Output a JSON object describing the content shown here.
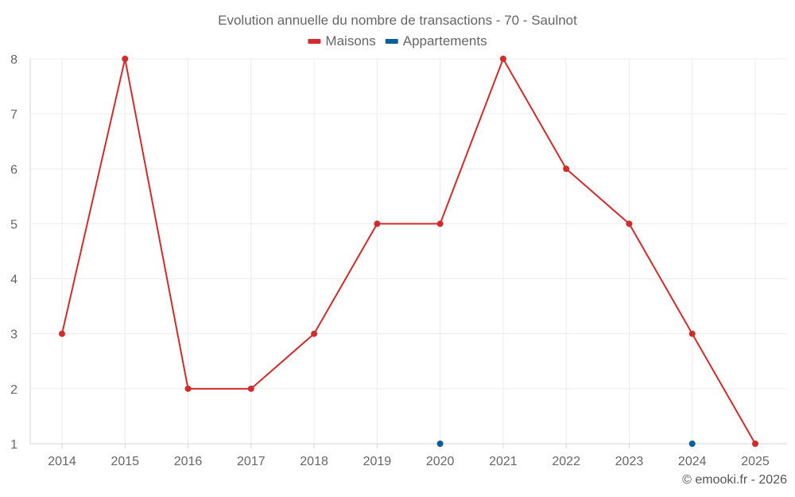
{
  "chart_data": {
    "type": "line",
    "title": "Evolution annuelle du nombre de transactions - 70 - Saulnot",
    "categories": [
      "2014",
      "2015",
      "2016",
      "2017",
      "2018",
      "2019",
      "2020",
      "2021",
      "2022",
      "2023",
      "2024",
      "2025"
    ],
    "ylim": [
      1,
      8
    ],
    "yticks": [
      "1",
      "2",
      "3",
      "4",
      "5",
      "6",
      "7",
      "8"
    ],
    "series": [
      {
        "name": "Maisons",
        "color": "#d32b2b",
        "values": [
          3,
          8,
          2,
          2,
          3,
          5,
          5,
          8,
          6,
          5,
          3,
          1
        ]
      },
      {
        "name": "Appartements",
        "color": "#0a5f96",
        "values": [
          null,
          null,
          null,
          null,
          null,
          null,
          1,
          null,
          null,
          null,
          1,
          null
        ]
      }
    ],
    "xlabel": "",
    "ylabel": "",
    "grid": true,
    "legend": "top-center"
  },
  "credit": "© emooki.fr - 2026"
}
